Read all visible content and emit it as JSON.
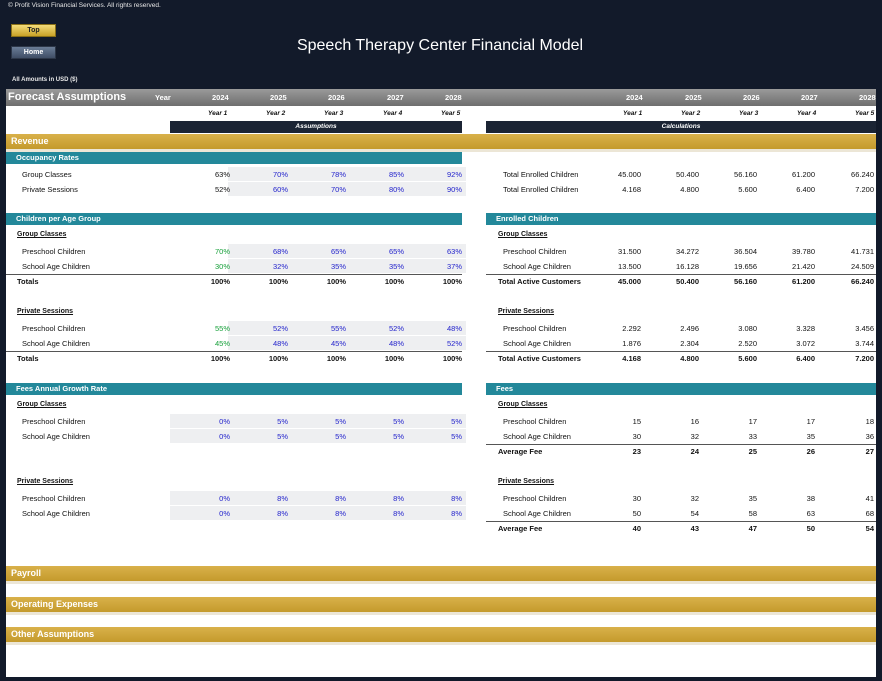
{
  "copyright": "© Profit Vision Financial Services. All rights reserved.",
  "nav": {
    "top": "Top",
    "home": "Home"
  },
  "title": "Speech Therapy Center Financial Model",
  "amounts_note": "All Amounts in  USD ($)",
  "header": {
    "title": "Forecast Assumptions",
    "year_label": "Year",
    "years": [
      "2024",
      "2025",
      "2026",
      "2027",
      "2028"
    ],
    "year_nums": [
      "Year 1",
      "Year 2",
      "Year 3",
      "Year 4",
      "Year 5"
    ],
    "assumptions_band": "Assumptions",
    "calculations_band": "Calculations"
  },
  "sections": {
    "revenue": "Revenue",
    "payroll": "Payroll",
    "opex": "Operating Expenses",
    "other": "Other Assumptions"
  },
  "occupancy": {
    "title": "Occupancy Rates",
    "rows": [
      {
        "label": "Group Classes",
        "values": [
          "63%",
          "70%",
          "78%",
          "85%",
          "92%"
        ]
      },
      {
        "label": "Private Sessions",
        "values": [
          "52%",
          "60%",
          "70%",
          "80%",
          "90%"
        ]
      }
    ]
  },
  "total_enrolled": {
    "rows": [
      {
        "label": "Total Enrolled Children",
        "values": [
          "45.000",
          "50.400",
          "56.160",
          "61.200",
          "66.240"
        ]
      },
      {
        "label": "Total Enrolled Children",
        "values": [
          "4.168",
          "4.800",
          "5.600",
          "6.400",
          "7.200"
        ]
      }
    ]
  },
  "age_group": {
    "title": "Children per Age Group",
    "group_title": "Group Classes",
    "group_rows": [
      {
        "label": "Preschool Children",
        "values": [
          "70%",
          "68%",
          "65%",
          "65%",
          "63%"
        ]
      },
      {
        "label": "School Age Children",
        "values": [
          "30%",
          "32%",
          "35%",
          "35%",
          "37%"
        ]
      }
    ],
    "group_total": {
      "label": "Totals",
      "values": [
        "100%",
        "100%",
        "100%",
        "100%",
        "100%"
      ]
    },
    "private_title": "Private Sessions",
    "private_rows": [
      {
        "label": "Preschool Children",
        "values": [
          "55%",
          "52%",
          "55%",
          "52%",
          "48%"
        ]
      },
      {
        "label": "School Age Children",
        "values": [
          "45%",
          "48%",
          "45%",
          "48%",
          "52%"
        ]
      }
    ],
    "private_total": {
      "label": "Totals",
      "values": [
        "100%",
        "100%",
        "100%",
        "100%",
        "100%"
      ]
    }
  },
  "enrolled": {
    "title": "Enrolled Children",
    "group_title": "Group Classes",
    "group_rows": [
      {
        "label": "Preschool Children",
        "values": [
          "31.500",
          "34.272",
          "36.504",
          "39.780",
          "41.731"
        ]
      },
      {
        "label": "School Age Children",
        "values": [
          "13.500",
          "16.128",
          "19.656",
          "21.420",
          "24.509"
        ]
      }
    ],
    "group_total": {
      "label": "Total Active Customers",
      "values": [
        "45.000",
        "50.400",
        "56.160",
        "61.200",
        "66.240"
      ]
    },
    "private_title": "Private Sessions",
    "private_rows": [
      {
        "label": "Preschool Children",
        "values": [
          "2.292",
          "2.496",
          "3.080",
          "3.328",
          "3.456"
        ]
      },
      {
        "label": "School Age Children",
        "values": [
          "1.876",
          "2.304",
          "2.520",
          "3.072",
          "3.744"
        ]
      }
    ],
    "private_total": {
      "label": "Total Active Customers",
      "values": [
        "4.168",
        "4.800",
        "5.600",
        "6.400",
        "7.200"
      ]
    }
  },
  "fee_growth": {
    "title": "Fees Annual Growth Rate",
    "group_title": "Group Classes",
    "group_rows": [
      {
        "label": "Preschool Children",
        "values": [
          "0%",
          "5%",
          "5%",
          "5%",
          "5%"
        ]
      },
      {
        "label": "School Age Children",
        "values": [
          "0%",
          "5%",
          "5%",
          "5%",
          "5%"
        ]
      }
    ],
    "private_title": "Private Sessions",
    "private_rows": [
      {
        "label": "Preschool Children",
        "values": [
          "0%",
          "8%",
          "8%",
          "8%",
          "8%"
        ]
      },
      {
        "label": "School Age Children",
        "values": [
          "0%",
          "8%",
          "8%",
          "8%",
          "8%"
        ]
      }
    ]
  },
  "fees": {
    "title": "Fees",
    "group_title": "Group Classes",
    "group_rows": [
      {
        "label": "Preschool Children",
        "values": [
          "15",
          "16",
          "17",
          "17",
          "18"
        ]
      },
      {
        "label": "School Age Children",
        "values": [
          "30",
          "32",
          "33",
          "35",
          "36"
        ]
      }
    ],
    "group_avg": {
      "label": "Average Fee",
      "values": [
        "23",
        "24",
        "25",
        "26",
        "27"
      ]
    },
    "private_title": "Private Sessions",
    "private_rows": [
      {
        "label": "Preschool Children",
        "values": [
          "30",
          "32",
          "35",
          "38",
          "41"
        ]
      },
      {
        "label": "School Age Children",
        "values": [
          "50",
          "54",
          "58",
          "63",
          "68"
        ]
      }
    ],
    "private_avg": {
      "label": "Average Fee",
      "values": [
        "40",
        "43",
        "47",
        "50",
        "54"
      ]
    }
  },
  "colors": {
    "header_gold": "#c9a227",
    "teal": "#23889a",
    "navy": "#1b2434",
    "input_blue": "#2323cc",
    "formula_green": "#17a03a"
  }
}
